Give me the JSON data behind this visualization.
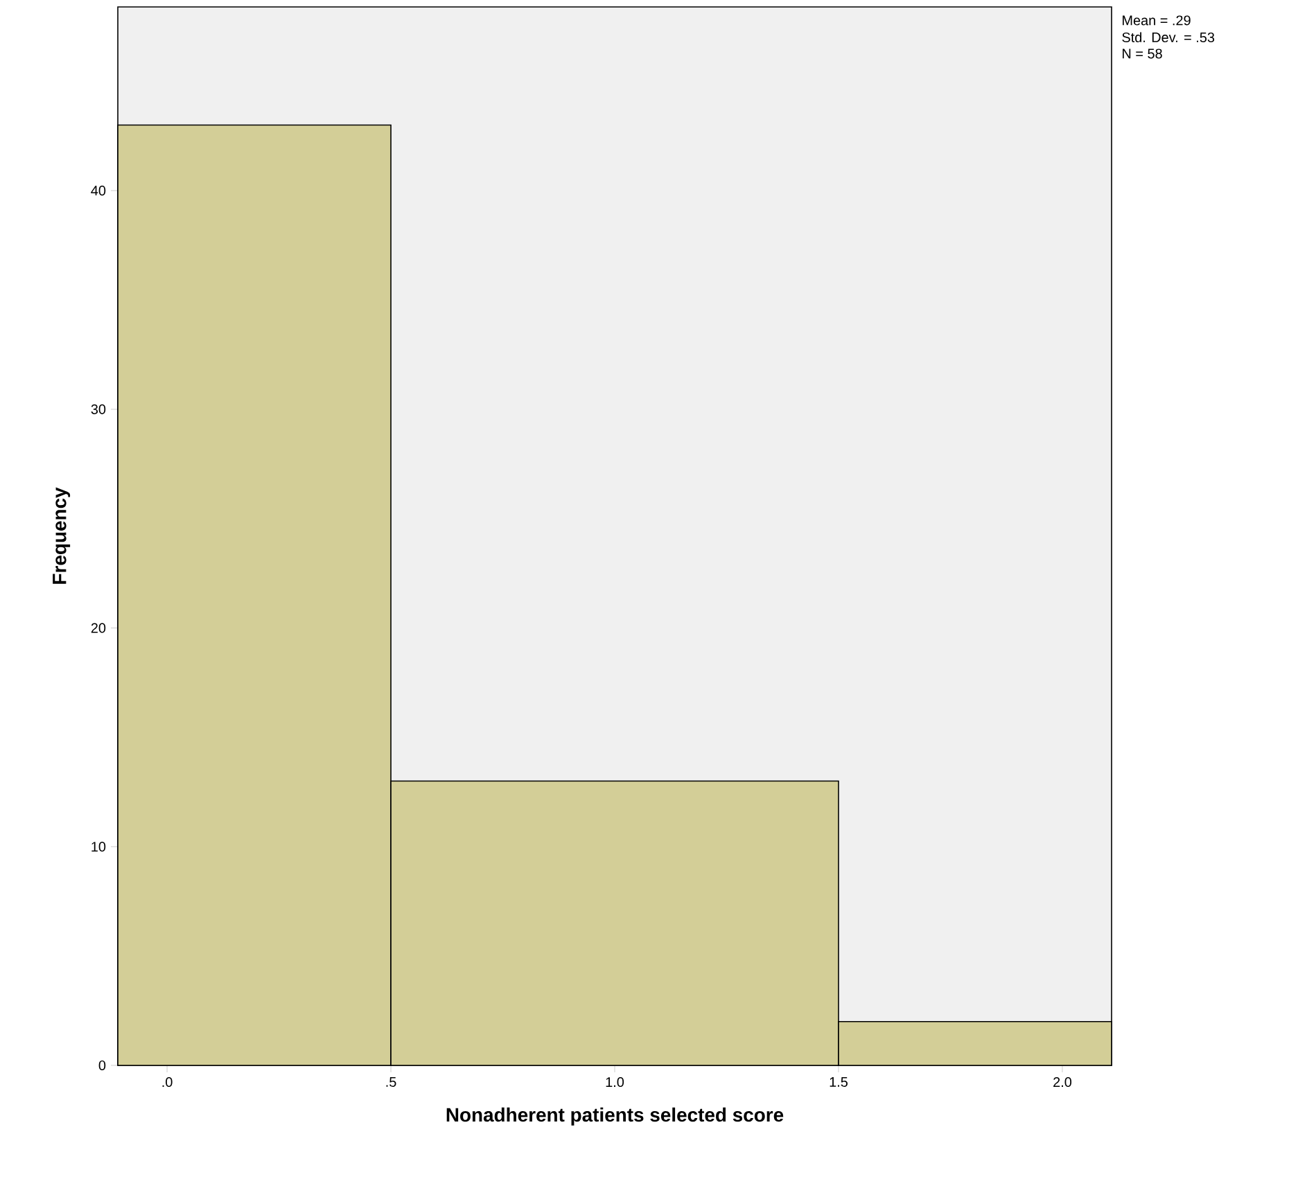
{
  "chart_data": {
    "type": "histogram",
    "xlabel": "Nonadherent patients selected score",
    "ylabel": "Frequency",
    "bins": [
      -0.11,
      0.5,
      1.5,
      2.11
    ],
    "values": [
      43,
      13,
      2
    ],
    "color": "#d3ce97",
    "xlim": [
      -0.11,
      2.11
    ],
    "ylim": [
      0,
      48.4
    ],
    "xticks": [
      {
        "value": 0,
        "label": ".0"
      },
      {
        "value": 0.5,
        "label": ".5"
      },
      {
        "value": 1.0,
        "label": "1.0"
      },
      {
        "value": 1.5,
        "label": "1.5"
      },
      {
        "value": 2.0,
        "label": "2.0"
      }
    ],
    "yticks": [
      0,
      10,
      20,
      30,
      40
    ],
    "annotations": [
      "Mean = .29",
      "Std. Dev. = .53",
      "N = 58"
    ]
  }
}
